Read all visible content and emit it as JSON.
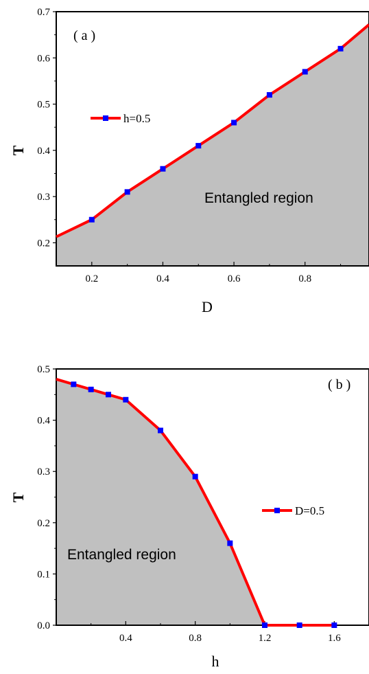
{
  "chart_data": [
    {
      "type": "area",
      "panel_label": "( a )",
      "xlabel": "D",
      "ylabel": "T",
      "xlim": [
        0.1,
        0.98
      ],
      "ylim": [
        0.15,
        0.7
      ],
      "xticks": [
        0.2,
        0.4,
        0.6,
        0.8
      ],
      "xtick_labels": [
        "0.2",
        "0.4",
        "0.6",
        "0.8"
      ],
      "xminor": [
        0.3,
        0.5,
        0.7,
        0.9
      ],
      "yticks": [
        0.2,
        0.3,
        0.4,
        0.5,
        0.6,
        0.7
      ],
      "ytick_labels": [
        "0.2",
        "0.3",
        "0.4",
        "0.5",
        "0.6",
        "0.7"
      ],
      "yminor": [
        0.25,
        0.35,
        0.45,
        0.55,
        0.65
      ],
      "line": {
        "x": [
          0.1,
          0.2,
          0.3,
          0.4,
          0.5,
          0.6,
          0.7,
          0.8,
          0.9,
          0.98
        ],
        "y": [
          0.213,
          0.25,
          0.31,
          0.36,
          0.41,
          0.46,
          0.52,
          0.57,
          0.62,
          0.672
        ]
      },
      "markers": {
        "x": [
          0.2,
          0.3,
          0.4,
          0.5,
          0.6,
          0.7,
          0.8,
          0.9
        ],
        "y": [
          0.25,
          0.31,
          0.36,
          0.41,
          0.46,
          0.52,
          0.57,
          0.62
        ]
      },
      "series_name": "h=0.5",
      "region_label": "Entangled region",
      "colors": {
        "line": "#ff0000",
        "marker": "#0000ff",
        "fill": "#c0c0c0"
      }
    },
    {
      "type": "area",
      "panel_label": "( b )",
      "xlabel": "h",
      "ylabel": "T",
      "xlim": [
        0.0,
        1.8
      ],
      "ylim": [
        0.0,
        0.5
      ],
      "xticks": [
        0.4,
        0.8,
        1.2,
        1.6
      ],
      "xtick_labels": [
        "0.4",
        "0.8",
        "1.2",
        "1.6"
      ],
      "xminor": [
        0.2,
        0.6,
        1.0,
        1.4
      ],
      "yticks": [
        0.0,
        0.1,
        0.2,
        0.3,
        0.4,
        0.5
      ],
      "ytick_labels": [
        "0.0",
        "0.1",
        "0.2",
        "0.3",
        "0.4",
        "0.5"
      ],
      "yminor": [
        0.05,
        0.15,
        0.25,
        0.35,
        0.45
      ],
      "line": {
        "x": [
          0.0,
          0.1,
          0.2,
          0.3,
          0.4,
          0.6,
          0.8,
          1.0,
          1.2,
          1.4,
          1.6
        ],
        "y": [
          0.48,
          0.47,
          0.46,
          0.45,
          0.44,
          0.38,
          0.29,
          0.16,
          0.0,
          0.0,
          0.0
        ]
      },
      "markers": {
        "x": [
          0.1,
          0.2,
          0.3,
          0.4,
          0.6,
          0.8,
          1.0,
          1.2,
          1.4,
          1.6
        ],
        "y": [
          0.47,
          0.46,
          0.45,
          0.44,
          0.38,
          0.29,
          0.16,
          0.0,
          0.0,
          0.0
        ]
      },
      "series_name": "D=0.5",
      "region_label": "Entangled region",
      "colors": {
        "line": "#ff0000",
        "marker": "#0000ff",
        "fill": "#c0c0c0"
      }
    }
  ]
}
